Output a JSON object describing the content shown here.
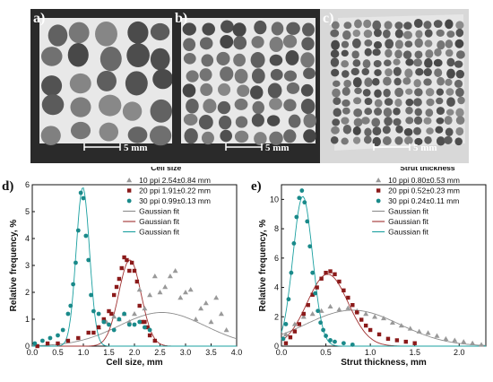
{
  "panels": [
    {
      "label": "a)",
      "scalebar": "5 mm",
      "pore_size": "large"
    },
    {
      "label": "b)",
      "scalebar": "5 mm",
      "pore_size": "medium"
    },
    {
      "label": "c)",
      "scalebar": "5 mm",
      "pore_size": "small"
    }
  ],
  "colors": {
    "ppi10": "#999999",
    "ppi20": "#8b1a1a",
    "ppi30": "#1a8a8a",
    "gauss10": "#8c8c8c",
    "gauss20": "#a03030",
    "gauss30": "#1aa0a0"
  },
  "chart_data": [
    {
      "type": "scatter",
      "letter": "d)",
      "title": "Cell size",
      "xlabel": "Cell size, mm",
      "ylabel": "Relative frequency, %",
      "xlim": [
        0.0,
        4.0
      ],
      "ylim": [
        0,
        6
      ],
      "xticks": [
        "0.0",
        "0.5",
        "1.0",
        "1.5",
        "2.0",
        "2.5",
        "3.0",
        "3.5",
        "4.0"
      ],
      "yticks": [
        "0",
        "1",
        "2",
        "3",
        "4",
        "5",
        "6"
      ],
      "legend": [
        {
          "marker": "triangle",
          "name": "10 ppi",
          "value": "2.54±0.84 mm"
        },
        {
          "marker": "square",
          "name": "20 ppi",
          "value": "1.91±0.22 mm"
        },
        {
          "marker": "circle",
          "name": "30 ppi",
          "value": "0.99±0.13 mm"
        },
        {
          "marker": "line",
          "name": "Gaussian fit",
          "value": ""
        },
        {
          "marker": "line",
          "name": "Gaussian fit",
          "value": ""
        },
        {
          "marker": "line",
          "name": "Gaussian fit",
          "value": ""
        }
      ],
      "series": [
        {
          "name": "10 ppi",
          "marker": "triangle",
          "gauss": {
            "mean": 2.54,
            "sd": 0.84,
            "amp": 1.25
          },
          "x": [
            1.3,
            1.45,
            1.6,
            1.7,
            1.8,
            1.9,
            2.0,
            2.1,
            2.2,
            2.3,
            2.4,
            2.5,
            2.6,
            2.7,
            2.8,
            2.9,
            3.0,
            3.1,
            3.2,
            3.3,
            3.4,
            3.5,
            3.6,
            3.7,
            3.8
          ],
          "y": [
            0.7,
            0.9,
            1.1,
            1.0,
            1.2,
            0.9,
            1.2,
            2.1,
            1.4,
            1.9,
            2.6,
            2.0,
            2.2,
            2.6,
            2.8,
            1.8,
            2.0,
            2.1,
            1.0,
            1.4,
            1.6,
            0.9,
            1.8,
            1.2,
            0.6
          ]
        },
        {
          "name": "20 ppi",
          "marker": "square",
          "gauss": {
            "mean": 1.91,
            "sd": 0.22,
            "amp": 3.2
          },
          "x": [
            0.1,
            0.3,
            0.5,
            0.7,
            0.9,
            1.1,
            1.2,
            1.3,
            1.4,
            1.5,
            1.55,
            1.6,
            1.65,
            1.7,
            1.75,
            1.8,
            1.85,
            1.9,
            1.95,
            2.0,
            2.05,
            2.1,
            2.15,
            2.2,
            2.25,
            2.3,
            2.4
          ],
          "y": [
            0.0,
            0.1,
            0.1,
            0.2,
            0.3,
            0.5,
            0.5,
            0.7,
            1.0,
            1.3,
            1.2,
            1.9,
            2.2,
            2.5,
            2.9,
            3.3,
            3.2,
            2.8,
            3.1,
            2.8,
            2.4,
            1.5,
            0.9,
            0.9,
            0.7,
            0.4,
            0.2
          ]
        },
        {
          "name": "30 ppi",
          "marker": "circle",
          "gauss": {
            "mean": 0.99,
            "sd": 0.13,
            "amp": 5.9
          },
          "x": [
            0.05,
            0.2,
            0.35,
            0.5,
            0.6,
            0.7,
            0.75,
            0.8,
            0.85,
            0.9,
            0.95,
            1.0,
            1.05,
            1.1,
            1.15,
            1.2,
            1.3,
            1.4,
            1.5,
            1.6,
            1.7,
            1.8,
            1.9,
            2.0,
            2.1,
            2.2,
            2.3
          ],
          "y": [
            0.1,
            0.2,
            0.3,
            0.4,
            0.6,
            1.2,
            1.5,
            2.3,
            3.1,
            4.3,
            5.7,
            5.5,
            4.1,
            3.2,
            1.9,
            1.3,
            1.2,
            0.9,
            0.8,
            0.6,
            1.0,
            1.2,
            0.8,
            0.8,
            0.9,
            0.7,
            0.6
          ]
        }
      ]
    },
    {
      "type": "scatter",
      "letter": "e)",
      "title": "Strut thickness",
      "xlabel": "Strut thickness, mm",
      "ylabel": "Relative frequency, %",
      "xlim": [
        0.0,
        2.3
      ],
      "ylim": [
        0,
        11
      ],
      "xticks": [
        "0.0",
        "0.5",
        "1.0",
        "1.5",
        "2.0"
      ],
      "xtick_values": [
        0.0,
        0.5,
        1.0,
        1.5,
        2.0
      ],
      "yticks": [
        "0",
        "2",
        "4",
        "6",
        "8",
        "10"
      ],
      "ytick_values": [
        0,
        2,
        4,
        6,
        8,
        10
      ],
      "legend": [
        {
          "marker": "triangle",
          "name": "10 ppi",
          "value": "0.80±0.53 mm"
        },
        {
          "marker": "square",
          "name": "20 ppi",
          "value": "0.52±0.23 mm"
        },
        {
          "marker": "circle",
          "name": "30 ppi",
          "value": "0.24±0.11 mm"
        },
        {
          "marker": "line",
          "name": "Gaussian fit",
          "value": ""
        },
        {
          "marker": "line",
          "name": "Gaussian fit",
          "value": ""
        },
        {
          "marker": "line",
          "name": "Gaussian fit",
          "value": ""
        }
      ],
      "series": [
        {
          "name": "10 ppi",
          "marker": "triangle",
          "gauss": {
            "mean": 0.8,
            "sd": 0.53,
            "amp": 2.45
          },
          "x": [
            0.05,
            0.15,
            0.25,
            0.35,
            0.45,
            0.55,
            0.65,
            0.75,
            0.85,
            0.95,
            1.05,
            1.15,
            1.25,
            1.35,
            1.45,
            1.55,
            1.65,
            1.75,
            1.85,
            1.95,
            2.05,
            2.15,
            2.25
          ],
          "y": [
            0.8,
            1.5,
            2.0,
            2.2,
            2.4,
            2.7,
            2.5,
            2.6,
            2.4,
            2.2,
            2.0,
            1.9,
            1.6,
            1.4,
            1.2,
            1.0,
            0.9,
            0.7,
            0.5,
            0.4,
            0.3,
            0.2,
            0.1
          ]
        },
        {
          "name": "20 ppi",
          "marker": "square",
          "gauss": {
            "mean": 0.52,
            "sd": 0.23,
            "amp": 4.9
          },
          "x": [
            0.05,
            0.1,
            0.15,
            0.2,
            0.25,
            0.3,
            0.35,
            0.4,
            0.45,
            0.5,
            0.55,
            0.6,
            0.65,
            0.7,
            0.75,
            0.8,
            0.85,
            0.9,
            0.95,
            1.0,
            1.1,
            1.2,
            1.3,
            1.4,
            1.5
          ],
          "y": [
            0.2,
            0.6,
            1.0,
            1.5,
            2.2,
            2.8,
            3.5,
            4.0,
            4.6,
            5.0,
            5.1,
            4.9,
            4.4,
            3.8,
            3.3,
            2.8,
            2.3,
            1.8,
            1.4,
            1.1,
            0.8,
            0.5,
            0.4,
            0.3,
            0.2
          ]
        },
        {
          "name": "30 ppi",
          "marker": "circle",
          "gauss": {
            "mean": 0.24,
            "sd": 0.11,
            "amp": 10.2
          },
          "x": [
            0.02,
            0.05,
            0.08,
            0.11,
            0.14,
            0.17,
            0.2,
            0.23,
            0.26,
            0.29,
            0.32,
            0.35,
            0.38,
            0.41,
            0.44,
            0.47,
            0.5,
            0.55,
            0.6,
            0.7,
            0.8
          ],
          "y": [
            0.5,
            1.5,
            3.2,
            5.0,
            7.0,
            8.8,
            10.1,
            10.6,
            9.8,
            8.5,
            6.8,
            5.0,
            3.6,
            2.4,
            1.6,
            1.1,
            0.7,
            0.4,
            0.3,
            0.2,
            0.1
          ]
        }
      ]
    }
  ]
}
